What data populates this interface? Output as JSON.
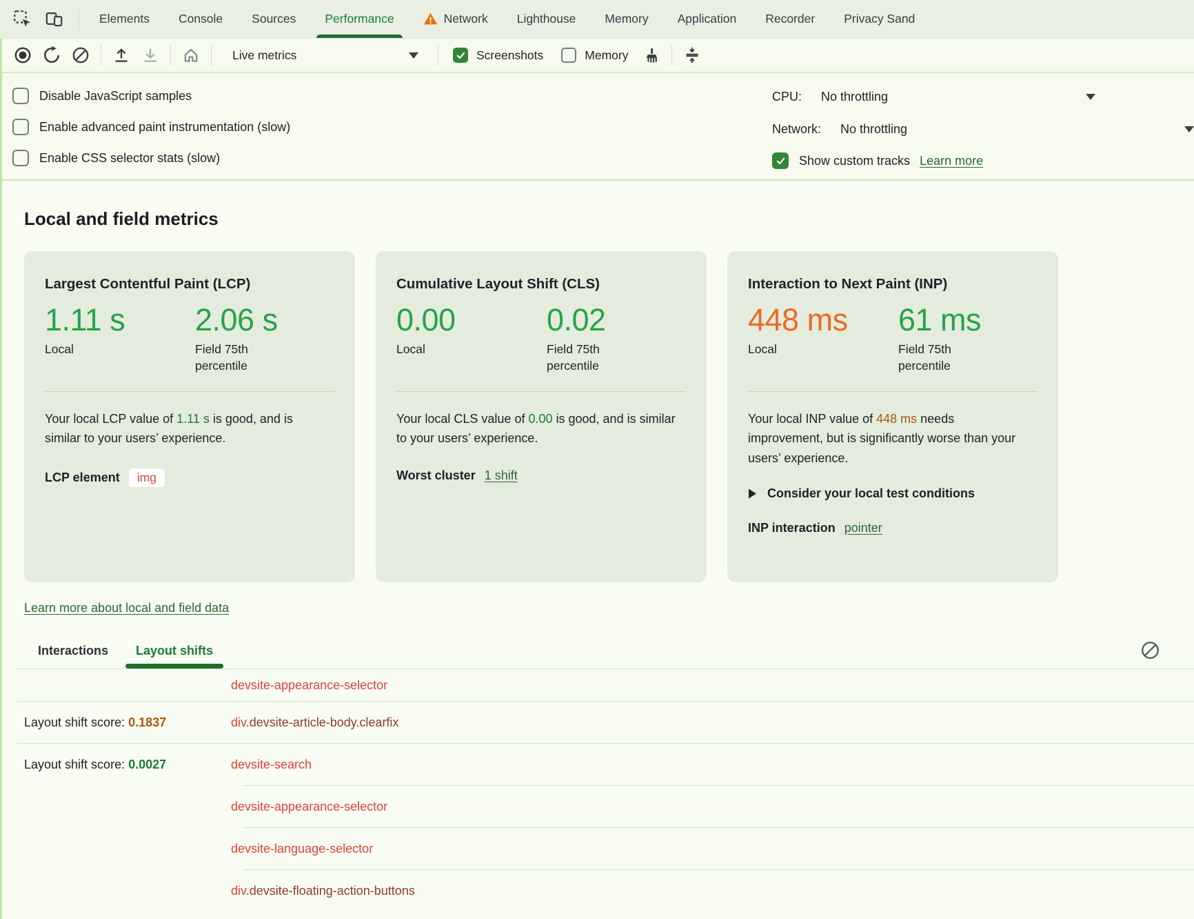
{
  "tabbar": {
    "tabs": [
      {
        "label": "Elements"
      },
      {
        "label": "Console"
      },
      {
        "label": "Sources"
      },
      {
        "label": "Performance",
        "active": true
      },
      {
        "label": "Network",
        "warning": true
      },
      {
        "label": "Lighthouse"
      },
      {
        "label": "Memory"
      },
      {
        "label": "Application"
      },
      {
        "label": "Recorder"
      },
      {
        "label": "Privacy Sand"
      }
    ]
  },
  "toolbar": {
    "live_metrics_label": "Live metrics",
    "screenshots_label": "Screenshots",
    "memory_label": "Memory"
  },
  "settings": {
    "options": [
      "Disable JavaScript samples",
      "Enable advanced paint instrumentation (slow)",
      "Enable CSS selector stats (slow)"
    ],
    "cpu_label": "CPU:",
    "cpu_value": "No throttling",
    "network_label": "Network:",
    "network_value": "No throttling",
    "show_custom_tracks_label": "Show custom tracks",
    "learn_more_label": "Learn more"
  },
  "metrics": {
    "heading": "Local and field metrics",
    "learn_more_link": "Learn more about local and field data",
    "cards": [
      {
        "title": "Largest Contentful Paint (LCP)",
        "local": {
          "value": "1.11 s",
          "status": "good",
          "label": "Local"
        },
        "field": {
          "value": "2.06 s",
          "status": "good",
          "label": "Field 75th percentile"
        },
        "desc": {
          "prefix": "Your local LCP value of ",
          "value": "1.11 s",
          "status": "good",
          "suffix": " is good, and is similar to your users’ experience."
        },
        "extra_label": "LCP element",
        "extra_chip": "img"
      },
      {
        "title": "Cumulative Layout Shift (CLS)",
        "local": {
          "value": "0.00",
          "status": "good",
          "label": "Local"
        },
        "field": {
          "value": "0.02",
          "status": "good",
          "label": "Field 75th percentile"
        },
        "desc": {
          "prefix": "Your local CLS value of ",
          "value": "0.00",
          "status": "good",
          "suffix": " is good, and is similar to your users’ experience."
        },
        "extra_label": "Worst cluster",
        "extra_link": "1 shift"
      },
      {
        "title": "Interaction to Next Paint (INP)",
        "local": {
          "value": "448 ms",
          "status": "bad",
          "label": "Local"
        },
        "field": {
          "value": "61 ms",
          "status": "good",
          "label": "Field 75th percentile"
        },
        "desc": {
          "prefix": "Your local INP value of ",
          "value": "448 ms",
          "status": "bad",
          "suffix": " needs improvement, but is significantly worse than your users’ experience."
        },
        "consider_label": "Consider your local test conditions",
        "extra_label": "INP interaction",
        "extra_link": "pointer"
      }
    ]
  },
  "logs": {
    "tabs": [
      {
        "label": "Interactions"
      },
      {
        "label": "Layout shifts",
        "active": true
      }
    ],
    "score_prefix": "Layout shift score: ",
    "rows": [
      {
        "sep": "none",
        "node": [
          {
            "text": "devsite-appearance-selector",
            "type": "tag"
          }
        ]
      },
      {
        "sep": "full",
        "score": "0.1837",
        "score_status": "bad",
        "node": [
          {
            "text": "div",
            "type": "tag"
          },
          {
            "text": ".devsite-article-body.clearfix",
            "type": "class"
          }
        ]
      },
      {
        "sep": "full",
        "score": "0.0027",
        "score_status": "good",
        "node": [
          {
            "text": "devsite-search",
            "type": "tag"
          }
        ]
      },
      {
        "sep": "indent",
        "node": [
          {
            "text": "devsite-appearance-selector",
            "type": "tag"
          }
        ]
      },
      {
        "sep": "indent",
        "node": [
          {
            "text": "devsite-language-selector",
            "type": "tag"
          }
        ]
      },
      {
        "sep": "indent",
        "node": [
          {
            "text": "div",
            "type": "tag"
          },
          {
            "text": ".devsite-floating-action-buttons",
            "type": "class"
          }
        ]
      }
    ]
  },
  "colors": {
    "accent_green": "#188038",
    "metric_good": "#27a24b",
    "metric_bad": "#ec6a26",
    "inline_good": "#1a7d37",
    "inline_bad": "#a9560e",
    "link_green": "#2b6637",
    "node_tag": "#dd4439",
    "node_class": "#8d3e22",
    "warning_orange": "#e8710a",
    "cb_green": "#33843a"
  }
}
